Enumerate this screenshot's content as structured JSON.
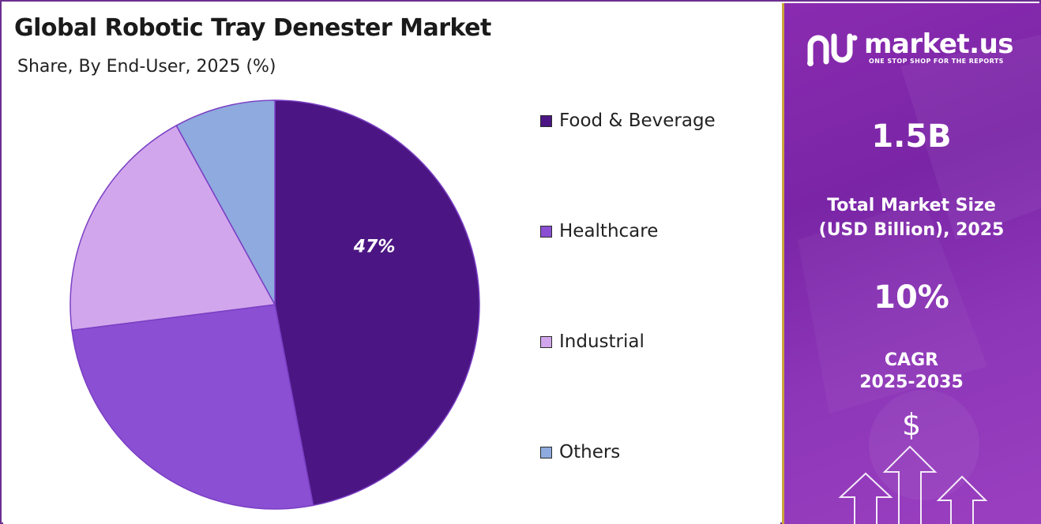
{
  "header": {
    "title": "Global Robotic Tray Denester Market",
    "subtitle": "Share, By End-User, 2025 (%)"
  },
  "chart_data": {
    "type": "pie",
    "categories": [
      "Food & Beverage",
      "Healthcare",
      "Industrial",
      "Others"
    ],
    "values": [
      47,
      26,
      19,
      8
    ],
    "data_labels": [
      "47%",
      "",
      "",
      ""
    ],
    "colors": [
      "#4b1683",
      "#8a4fd2",
      "#d2a6ec",
      "#8eaade"
    ],
    "legend_position": "right"
  },
  "sidebar": {
    "brand_name": "market.us",
    "brand_tagline": "ONE STOP SHOP FOR THE REPORTS",
    "market_size_value": "1.5B",
    "market_size_label_1": "Total Market Size",
    "market_size_label_2": "(USD Billion), 2025",
    "cagr_value": "10%",
    "cagr_label_1": "CAGR",
    "cagr_label_2": "2025-2035",
    "currency_symbol": "$",
    "icons": [
      "market-us-logo-icon",
      "dollar-icon",
      "growth-arrows-icon"
    ]
  }
}
